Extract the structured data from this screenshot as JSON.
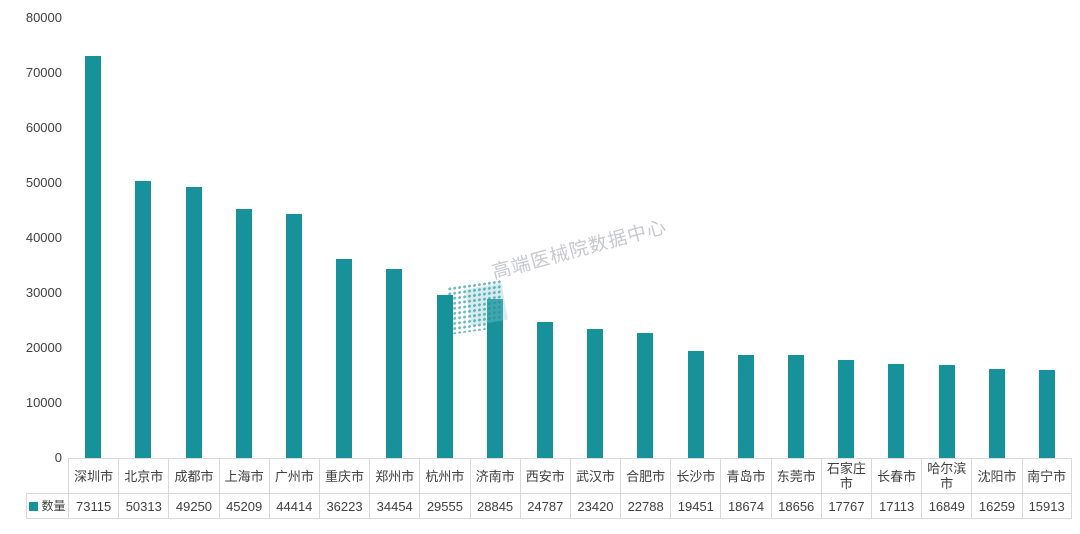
{
  "chart_data": {
    "type": "bar",
    "title": "",
    "xlabel": "",
    "ylabel": "",
    "categories": [
      "深圳市",
      "北京市",
      "成都市",
      "上海市",
      "广州市",
      "重庆市",
      "郑州市",
      "杭州市",
      "济南市",
      "西安市",
      "武汉市",
      "合肥市",
      "长沙市",
      "青岛市",
      "东莞市",
      "石家庄市",
      "长春市",
      "哈尔滨市",
      "沈阳市",
      "南宁市"
    ],
    "series": [
      {
        "name": "数量",
        "values": [
          73115,
          50313,
          49250,
          45209,
          44414,
          36223,
          34454,
          29555,
          28845,
          24787,
          23420,
          22788,
          19451,
          18674,
          18656,
          17767,
          17113,
          16849,
          16259,
          15913
        ]
      }
    ],
    "ylim": [
      0,
      80000
    ],
    "yticks": [
      0,
      10000,
      20000,
      30000,
      40000,
      50000,
      60000,
      70000,
      80000
    ],
    "grid": false,
    "legend_position": "bottom-table",
    "colors": {
      "bar": "#17929B",
      "text": "#404040",
      "table_border": "#D9D9D9"
    }
  },
  "legend": {
    "label": "数量"
  },
  "watermark": {
    "text": "高端医械院数据中心"
  }
}
